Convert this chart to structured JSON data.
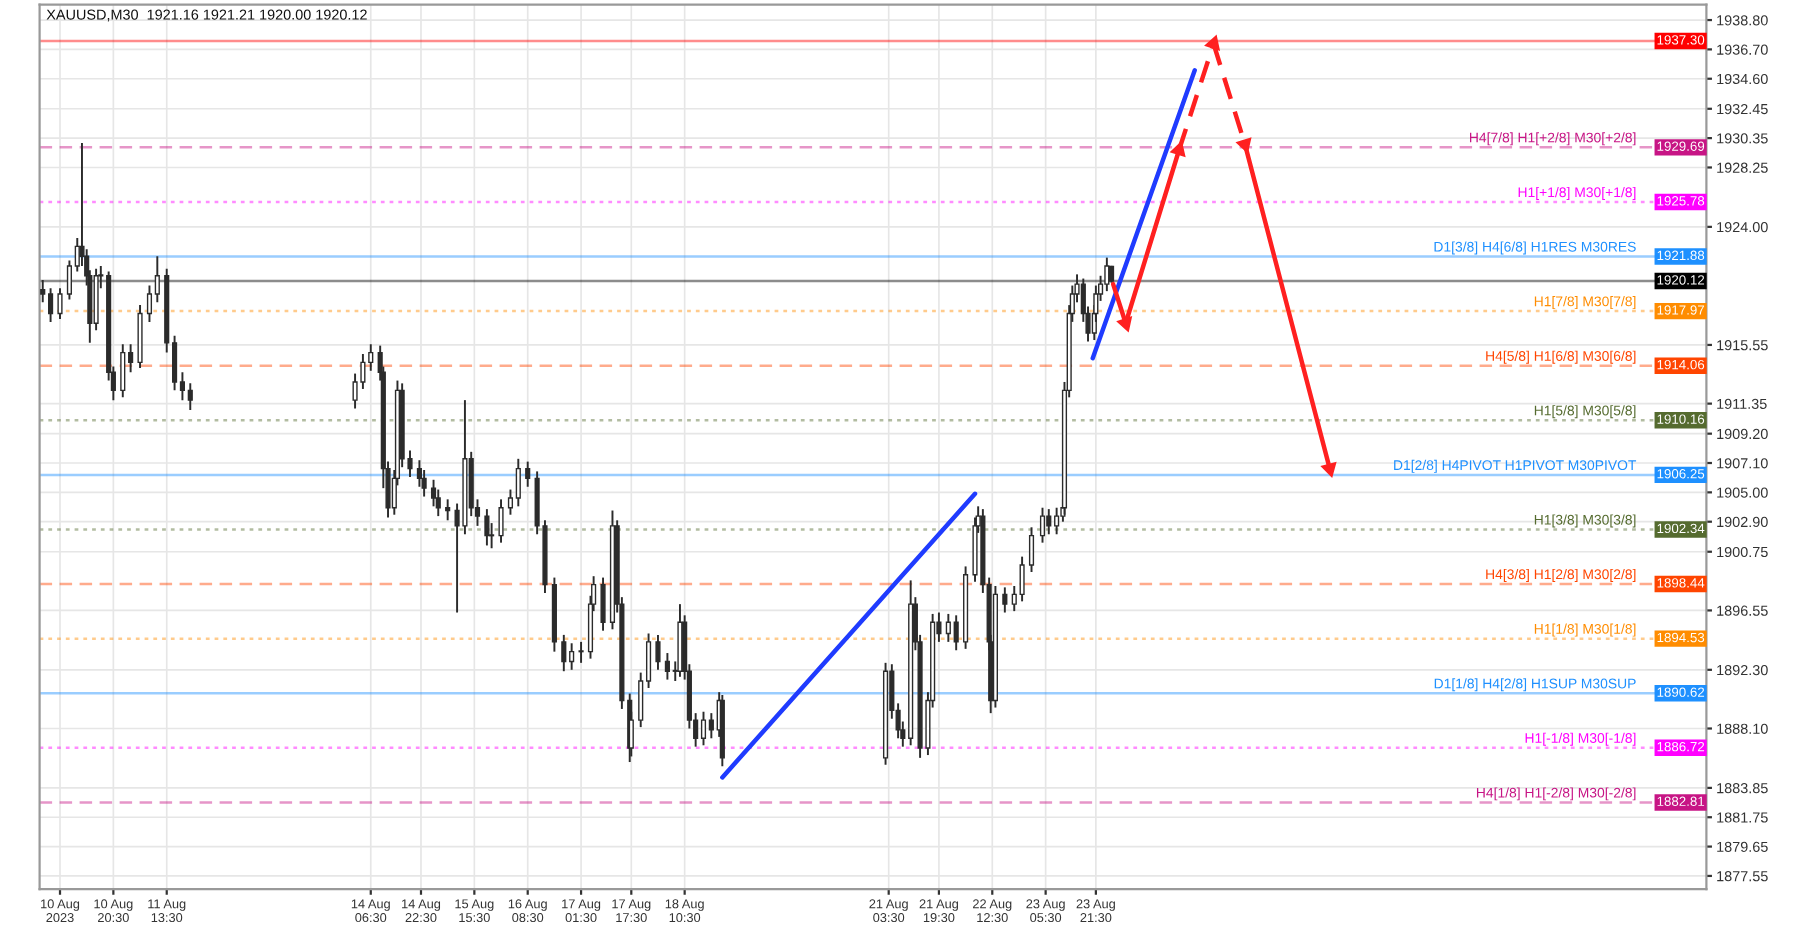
{
  "chart_data": {
    "type": "candlestick",
    "title": "XAUUSD,M30  1921.16 1921.21 1920.00 1920.12",
    "series": [
      {
        "color": "#2b2b2b",
        "x": [
          "2023-08-09T22:00",
          "2023-08-10T00:30",
          "2023-08-10T03:30",
          "2023-08-10T06:30",
          "2023-08-10T09:00",
          "2023-08-10T10:30",
          "2023-08-10T12:00",
          "2023-08-10T13:00",
          "2023-08-10T15:00",
          "2023-08-10T16:30",
          "2023-08-10T19:00",
          "2023-08-10T20:30",
          "2023-08-10T23:30",
          "2023-08-11T02:00",
          "2023-08-11T05:00",
          "2023-08-11T08:00",
          "2023-08-11T10:30",
          "2023-08-11T13:30",
          "2023-08-11T16:00",
          "2023-08-11T18:30",
          "2023-08-11T21:00",
          "2023-08-14T01:30",
          "2023-08-14T04:00",
          "2023-08-14T06:30",
          "2023-08-14T09:30",
          "2023-08-14T10:30",
          "2023-08-14T12:00",
          "2023-08-14T14:00",
          "2023-08-14T15:00",
          "2023-08-14T16:30",
          "2023-08-14T19:00",
          "2023-08-14T22:00",
          "2023-08-14T23:30",
          "2023-08-15T02:30",
          "2023-08-15T04:00",
          "2023-08-15T07:00",
          "2023-08-15T10:00",
          "2023-08-15T12:30",
          "2023-08-15T14:30",
          "2023-08-15T16:30",
          "2023-08-15T19:30",
          "2023-08-15T21:00",
          "2023-08-16T00:00",
          "2023-08-16T03:00",
          "2023-08-16T05:30",
          "2023-08-16T08:30",
          "2023-08-16T11:30",
          "2023-08-16T14:00",
          "2023-08-16T17:00",
          "2023-08-16T20:00",
          "2023-08-16T22:30",
          "2023-08-17T01:30",
          "2023-08-17T04:30",
          "2023-08-17T05:30",
          "2023-08-17T08:30",
          "2023-08-17T11:30",
          "2023-08-17T13:00",
          "2023-08-17T14:30",
          "2023-08-17T17:00",
          "2023-08-17T17:30",
          "2023-08-17T20:30",
          "2023-08-17T23:00",
          "2023-08-18T02:00",
          "2023-08-18T05:00",
          "2023-08-18T07:30",
          "2023-08-18T09:00",
          "2023-08-18T10:30",
          "2023-08-18T12:00",
          "2023-08-18T14:00",
          "2023-08-18T16:30",
          "2023-08-18T19:00",
          "2023-08-18T21:30",
          "2023-08-18T22:30",
          "2023-08-21T02:30",
          "2023-08-21T04:30",
          "2023-08-21T06:30",
          "2023-08-21T08:00",
          "2023-08-21T10:30",
          "2023-08-21T12:00",
          "2023-08-21T13:30",
          "2023-08-21T16:00",
          "2023-08-21T17:30",
          "2023-08-21T19:30",
          "2023-08-21T22:30",
          "2023-08-22T01:00",
          "2023-08-22T04:00",
          "2023-08-22T07:00",
          "2023-08-22T08:00",
          "2023-08-22T09:30",
          "2023-08-22T11:30",
          "2023-08-22T12:00",
          "2023-08-22T13:30",
          "2023-08-22T16:30",
          "2023-08-22T19:30",
          "2023-08-22T22:00",
          "2023-08-23T01:00",
          "2023-08-23T04:30",
          "2023-08-23T06:30",
          "2023-08-23T09:00",
          "2023-08-23T11:00",
          "2023-08-23T11:30",
          "2023-08-23T13:00",
          "2023-08-23T14:00",
          "2023-08-23T15:30",
          "2023-08-23T17:30",
          "2023-08-23T19:00",
          "2023-08-23T21:00",
          "2023-08-23T21:30",
          "2023-08-23T23:00",
          "2023-08-24T01:00",
          "2023-08-24T02:30"
        ],
        "ohlc": [
          [
            1919.5,
            1920.2,
            1918.6,
            1919.2
          ],
          [
            1919.2,
            1919.6,
            1917.2,
            1917.8
          ],
          [
            1917.8,
            1919.6,
            1917.4,
            1919.2
          ],
          [
            1919.2,
            1921.6,
            1918.8,
            1921.2
          ],
          [
            1921.2,
            1923.2,
            1920.8,
            1922.6
          ],
          [
            1922.6,
            1930.0,
            1921.2,
            1921.9
          ],
          [
            1921.9,
            1922.4,
            1919.8,
            1920.5
          ],
          [
            1920.5,
            1920.9,
            1915.7,
            1917.1
          ],
          [
            1917.1,
            1921.0,
            1916.6,
            1920.5
          ],
          [
            1920.5,
            1921.2,
            1919.6,
            1920.5
          ],
          [
            1920.5,
            1920.8,
            1913.0,
            1913.6
          ],
          [
            1913.6,
            1914.0,
            1911.6,
            1912.3
          ],
          [
            1912.3,
            1915.6,
            1911.8,
            1915.0
          ],
          [
            1915.0,
            1915.6,
            1913.6,
            1914.3
          ],
          [
            1914.3,
            1918.4,
            1913.9,
            1917.8
          ],
          [
            1917.8,
            1919.8,
            1917.2,
            1919.2
          ],
          [
            1919.2,
            1921.9,
            1918.6,
            1920.5
          ],
          [
            1920.5,
            1921.0,
            1915.0,
            1915.7
          ],
          [
            1915.7,
            1916.2,
            1912.3,
            1912.9
          ],
          [
            1912.9,
            1913.6,
            1911.6,
            1912.3
          ],
          [
            1912.3,
            1912.8,
            1910.9,
            1911.6
          ],
          [
            1911.6,
            1913.5,
            1911.0,
            1912.9
          ],
          [
            1912.9,
            1914.9,
            1912.4,
            1914.3
          ],
          [
            1914.3,
            1915.6,
            1913.7,
            1915.0
          ],
          [
            1915.0,
            1915.5,
            1913.0,
            1913.6
          ],
          [
            1913.6,
            1914.0,
            1905.3,
            1906.7
          ],
          [
            1906.7,
            1907.2,
            1903.2,
            1903.9
          ],
          [
            1903.9,
            1906.6,
            1903.4,
            1906.0
          ],
          [
            1906.0,
            1913.0,
            1905.5,
            1912.3
          ],
          [
            1912.3,
            1912.8,
            1906.8,
            1907.4
          ],
          [
            1907.4,
            1908.0,
            1906.1,
            1906.7
          ],
          [
            1906.7,
            1907.3,
            1905.4,
            1906.0
          ],
          [
            1906.0,
            1906.6,
            1904.7,
            1905.3
          ],
          [
            1905.3,
            1905.9,
            1904.0,
            1904.6
          ],
          [
            1904.6,
            1905.2,
            1903.3,
            1903.9
          ],
          [
            1903.9,
            1904.5,
            1903.0,
            1903.7
          ],
          [
            1903.7,
            1904.2,
            1896.4,
            1902.6
          ],
          [
            1902.6,
            1911.6,
            1902.0,
            1907.4
          ],
          [
            1907.4,
            1907.9,
            1903.3,
            1903.9
          ],
          [
            1903.9,
            1904.5,
            1902.6,
            1903.3
          ],
          [
            1903.3,
            1903.8,
            1901.2,
            1901.9
          ],
          [
            1901.9,
            1902.8,
            1901.0,
            1901.9
          ],
          [
            1901.9,
            1904.5,
            1901.4,
            1903.9
          ],
          [
            1903.9,
            1905.2,
            1903.4,
            1904.6
          ],
          [
            1904.6,
            1907.4,
            1904.0,
            1906.7
          ],
          [
            1906.7,
            1907.2,
            1905.4,
            1906.0
          ],
          [
            1906.0,
            1906.5,
            1902.0,
            1902.6
          ],
          [
            1902.6,
            1903.0,
            1897.8,
            1898.4
          ],
          [
            1898.4,
            1898.9,
            1893.6,
            1894.3
          ],
          [
            1894.3,
            1894.8,
            1892.2,
            1892.9
          ],
          [
            1892.9,
            1894.2,
            1892.3,
            1893.6
          ],
          [
            1893.6,
            1894.3,
            1892.8,
            1893.6
          ],
          [
            1893.6,
            1897.6,
            1893.1,
            1897.0
          ],
          [
            1897.0,
            1899.0,
            1896.5,
            1898.4
          ],
          [
            1898.4,
            1898.9,
            1895.1,
            1895.7
          ],
          [
            1895.7,
            1903.7,
            1895.2,
            1902.6
          ],
          [
            1902.6,
            1903.0,
            1896.4,
            1897.0
          ],
          [
            1897.0,
            1897.5,
            1889.5,
            1890.1
          ],
          [
            1890.1,
            1890.6,
            1885.7,
            1886.7
          ],
          [
            1886.7,
            1889.3,
            1886.1,
            1888.7
          ],
          [
            1888.7,
            1892.1,
            1888.2,
            1891.5
          ],
          [
            1891.5,
            1894.9,
            1891.0,
            1894.3
          ],
          [
            1894.3,
            1894.8,
            1892.3,
            1892.9
          ],
          [
            1892.9,
            1893.5,
            1891.6,
            1892.2
          ],
          [
            1892.2,
            1892.9,
            1891.5,
            1892.2
          ],
          [
            1892.2,
            1897.0,
            1891.8,
            1895.7
          ],
          [
            1895.7,
            1896.2,
            1891.6,
            1892.2
          ],
          [
            1892.2,
            1892.7,
            1888.1,
            1888.7
          ],
          [
            1888.7,
            1889.2,
            1886.8,
            1887.4
          ],
          [
            1887.4,
            1889.3,
            1886.9,
            1888.7
          ],
          [
            1888.7,
            1889.2,
            1887.4,
            1888.0
          ],
          [
            1888.0,
            1890.7,
            1887.5,
            1890.1
          ],
          [
            1890.1,
            1890.5,
            1885.4,
            1886.0
          ],
          [
            1886.0,
            1892.8,
            1885.5,
            1892.2
          ],
          [
            1892.2,
            1892.7,
            1888.8,
            1889.4
          ],
          [
            1889.4,
            1889.9,
            1887.4,
            1888.0
          ],
          [
            1888.0,
            1888.6,
            1886.8,
            1887.4
          ],
          [
            1887.4,
            1898.7,
            1886.9,
            1897.0
          ],
          [
            1897.0,
            1897.5,
            1893.7,
            1894.3
          ],
          [
            1894.3,
            1894.8,
            1886.0,
            1886.7
          ],
          [
            1886.7,
            1890.7,
            1886.2,
            1890.1
          ],
          [
            1890.1,
            1896.3,
            1889.6,
            1895.7
          ],
          [
            1895.7,
            1896.4,
            1894.3,
            1894.9
          ],
          [
            1894.9,
            1896.3,
            1894.3,
            1895.7
          ],
          [
            1895.7,
            1896.2,
            1893.7,
            1894.3
          ],
          [
            1894.3,
            1899.7,
            1893.8,
            1899.1
          ],
          [
            1899.1,
            1903.2,
            1898.6,
            1902.6
          ],
          [
            1902.6,
            1904.0,
            1902.1,
            1903.3
          ],
          [
            1903.3,
            1903.8,
            1897.8,
            1898.4
          ],
          [
            1898.4,
            1898.9,
            1893.7,
            1894.3
          ],
          [
            1894.3,
            1894.8,
            1889.2,
            1890.1
          ],
          [
            1890.1,
            1898.3,
            1889.6,
            1897.7
          ],
          [
            1897.7,
            1898.2,
            1896.4,
            1897.0
          ],
          [
            1897.0,
            1898.3,
            1896.5,
            1897.7
          ],
          [
            1897.7,
            1900.4,
            1897.2,
            1899.8
          ],
          [
            1899.8,
            1902.5,
            1899.3,
            1901.9
          ],
          [
            1901.9,
            1903.9,
            1901.4,
            1903.3
          ],
          [
            1903.3,
            1903.8,
            1902.0,
            1902.6
          ],
          [
            1902.6,
            1903.9,
            1902.0,
            1903.3
          ],
          [
            1903.3,
            1904.5,
            1902.9,
            1903.9
          ],
          [
            1903.9,
            1912.9,
            1903.4,
            1912.3
          ],
          [
            1912.3,
            1918.4,
            1911.8,
            1917.8
          ],
          [
            1917.8,
            1919.8,
            1917.2,
            1919.2
          ],
          [
            1919.2,
            1920.6,
            1918.6,
            1919.9
          ],
          [
            1919.9,
            1920.3,
            1917.2,
            1917.8
          ],
          [
            1917.8,
            1918.3,
            1915.8,
            1916.4
          ],
          [
            1916.4,
            1918.4,
            1915.9,
            1917.8
          ],
          [
            1917.8,
            1919.8,
            1917.2,
            1919.2
          ],
          [
            1919.2,
            1920.5,
            1918.7,
            1919.9
          ],
          [
            1919.9,
            1921.8,
            1919.4,
            1921.2
          ],
          [
            1921.16,
            1921.21,
            1920.0,
            1920.12
          ]
        ]
      },
      {
        "type": "line",
        "color": "#1f3bff",
        "line_style": "solid",
        "x": [
          "2023-08-18T22:30",
          "2023-08-22T07:00"
        ],
        "values": [
          1884.6,
          1904.9
        ]
      },
      {
        "type": "line",
        "color": "#1f3bff",
        "line_style": "solid",
        "x": [
          "2023-08-23T20:30",
          "2023-08-25T05:00"
        ],
        "values": [
          1914.6,
          1935.2
        ]
      },
      {
        "type": "line",
        "color": "#ff2020",
        "line_style": "solid",
        "marker": "triangle",
        "x": [
          "2023-08-24T03:00",
          "2023-08-24T07:00"
        ],
        "values": [
          1919.9,
          1917.1
        ]
      },
      {
        "type": "line",
        "color": "#ff2020",
        "line_style": "solid",
        "marker": "triangle",
        "x": [
          "2023-08-24T07:00",
          "2023-08-25T00:00"
        ],
        "values": [
          1917.1,
          1929.5
        ]
      },
      {
        "type": "line",
        "color": "#ff2020",
        "line_style": "dashed",
        "marker": "triangle",
        "x": [
          "2023-08-25T00:00",
          "2023-08-25T11:00"
        ],
        "values": [
          1929.5,
          1937.1
        ]
      },
      {
        "type": "line",
        "color": "#ff2020",
        "line_style": "dashed",
        "marker": "triangle",
        "x": [
          "2023-08-25T11:00",
          "2023-08-25T21:00"
        ],
        "values": [
          1937.1,
          1929.9
        ]
      },
      {
        "type": "line",
        "color": "#ff2020",
        "line_style": "solid",
        "marker": "triangle",
        "x": [
          "2023-08-25T21:00",
          "2023-08-27T00:00"
        ],
        "values": [
          1929.9,
          1906.7
        ]
      }
    ],
    "ref_lines": [
      {
        "axis": "y",
        "value": 1937.3,
        "label": null,
        "color": "#ff0000",
        "line_style": "solid"
      },
      {
        "axis": "y",
        "value": 1929.69,
        "label": "H4[7/8] H1[+2/8] M30[+2/8]",
        "color": "#c71585",
        "line_style": "dashed"
      },
      {
        "axis": "y",
        "value": 1925.78,
        "label": "H1[+1/8] M30[+1/8]",
        "color": "#ff00ff",
        "line_style": "dotted"
      },
      {
        "axis": "y",
        "value": 1921.88,
        "label": "D1[3/8] H4[6/8] H1RES M30RES",
        "color": "#1e90ff",
        "line_style": "solid"
      },
      {
        "axis": "y",
        "value": 1920.12,
        "label": null,
        "color": "#000000",
        "line_style": "solid"
      },
      {
        "axis": "y",
        "value": 1917.97,
        "label": "H1[7/8] M30[7/8]",
        "color": "#ff8c00",
        "line_style": "dotted"
      },
      {
        "axis": "y",
        "value": 1914.06,
        "label": "H4[5/8] H1[6/8] M30[6/8]",
        "color": "#ff4500",
        "line_style": "dashed"
      },
      {
        "axis": "y",
        "value": 1910.16,
        "label": "H1[5/8] M30[5/8]",
        "color": "#556b2f",
        "line_style": "dotted"
      },
      {
        "axis": "y",
        "value": 1906.25,
        "label": "D1[2/8] H4PIVOT H1PIVOT M30PIVOT",
        "color": "#1e90ff",
        "line_style": "solid"
      },
      {
        "axis": "y",
        "value": 1902.34,
        "label": "H1[3/8] M30[3/8]",
        "color": "#556b2f",
        "line_style": "dotted"
      },
      {
        "axis": "y",
        "value": 1898.44,
        "label": "H4[3/8] H1[2/8] M30[2/8]",
        "color": "#ff4500",
        "line_style": "dashed"
      },
      {
        "axis": "y",
        "value": 1894.53,
        "label": "H1[1/8] M30[1/8]",
        "color": "#ff8c00",
        "line_style": "dotted"
      },
      {
        "axis": "y",
        "value": 1890.62,
        "label": "D1[1/8] H4[2/8] H1SUP M30SUP",
        "color": "#1e90ff",
        "line_style": "solid"
      },
      {
        "axis": "y",
        "value": 1886.72,
        "label": "H1[-1/8] M30[-1/8]",
        "color": "#ff00ff",
        "line_style": "dotted"
      },
      {
        "axis": "y",
        "value": 1882.81,
        "label": "H4[1/8] H1[-2/8] M30[-2/8]",
        "color": "#c71585",
        "line_style": "dashed"
      }
    ],
    "annotations": [
      {
        "text": "1937.30",
        "y": 1937.3
      },
      {
        "text": "1929.69",
        "y": 1929.69
      },
      {
        "text": "1925.78",
        "y": 1925.78
      },
      {
        "text": "1921.88",
        "y": 1921.88
      },
      {
        "text": "1920.12",
        "y": 1920.12
      },
      {
        "text": "1917.97",
        "y": 1917.97
      },
      {
        "text": "1914.06",
        "y": 1914.06
      },
      {
        "text": "1910.16",
        "y": 1910.16
      },
      {
        "text": "1906.25",
        "y": 1906.25
      },
      {
        "text": "1902.34",
        "y": 1902.34
      },
      {
        "text": "1898.44",
        "y": 1898.44
      },
      {
        "text": "1894.53",
        "y": 1894.53
      },
      {
        "text": "1890.62",
        "y": 1890.62
      },
      {
        "text": "1886.72",
        "y": 1886.72
      },
      {
        "text": "1882.81",
        "y": 1882.81
      }
    ],
    "xlim": [
      "2023-08-09T21:00",
      "2023-09-01T00:00"
    ],
    "xticks": [
      {
        "value": "2023-08-10T03:30",
        "label": "10 Aug 2023"
      },
      {
        "value": "2023-08-10T20:30",
        "label": "10 Aug 20:30"
      },
      {
        "value": "2023-08-11T13:30",
        "label": "11 Aug 13:30"
      },
      {
        "value": "2023-08-14T06:30",
        "label": "14 Aug 06:30"
      },
      {
        "value": "2023-08-14T22:30",
        "label": "14 Aug 22:30"
      },
      {
        "value": "2023-08-15T15:30",
        "label": "15 Aug 15:30"
      },
      {
        "value": "2023-08-16T08:30",
        "label": "16 Aug 08:30"
      },
      {
        "value": "2023-08-17T01:30",
        "label": "17 Aug 01:30"
      },
      {
        "value": "2023-08-17T17:30",
        "label": "17 Aug 17:30"
      },
      {
        "value": "2023-08-18T10:30",
        "label": "18 Aug 10:30"
      },
      {
        "value": "2023-08-21T03:30",
        "label": "21 Aug 03:30"
      },
      {
        "value": "2023-08-21T19:30",
        "label": "21 Aug 19:30"
      },
      {
        "value": "2023-08-22T12:30",
        "label": "22 Aug 12:30"
      },
      {
        "value": "2023-08-23T05:30",
        "label": "23 Aug 05:30"
      },
      {
        "value": "2023-08-23T21:30",
        "label": "23 Aug 21:30"
      }
    ],
    "ylim": [
      1876.6,
      1939.9
    ],
    "yticks": [
      {
        "value": 1938.8,
        "label": "1938.80"
      },
      {
        "value": 1936.7,
        "label": "1936.70"
      },
      {
        "value": 1934.6,
        "label": "1934.60"
      },
      {
        "value": 1932.45,
        "label": "1932.45"
      },
      {
        "value": 1930.35,
        "label": "1930.35"
      },
      {
        "value": 1928.25,
        "label": "1928.25"
      },
      {
        "value": 1924.0,
        "label": "1924.00"
      },
      {
        "value": 1915.55,
        "label": "1915.55"
      },
      {
        "value": 1911.35,
        "label": "1911.35"
      },
      {
        "value": 1909.2,
        "label": "1909.20"
      },
      {
        "value": 1907.1,
        "label": "1907.10"
      },
      {
        "value": 1905.0,
        "label": "1905.00"
      },
      {
        "value": 1902.9,
        "label": "1902.90"
      },
      {
        "value": 1900.75,
        "label": "1900.75"
      },
      {
        "value": 1896.55,
        "label": "1896.55"
      },
      {
        "value": 1892.3,
        "label": "1892.30"
      },
      {
        "value": 1888.1,
        "label": "1888.10"
      },
      {
        "value": 1883.85,
        "label": "1883.85"
      },
      {
        "value": 1881.75,
        "label": "1881.75"
      },
      {
        "value": 1879.65,
        "label": "1879.65"
      },
      {
        "value": 1877.55,
        "label": "1877.55"
      }
    ],
    "grid": true
  }
}
